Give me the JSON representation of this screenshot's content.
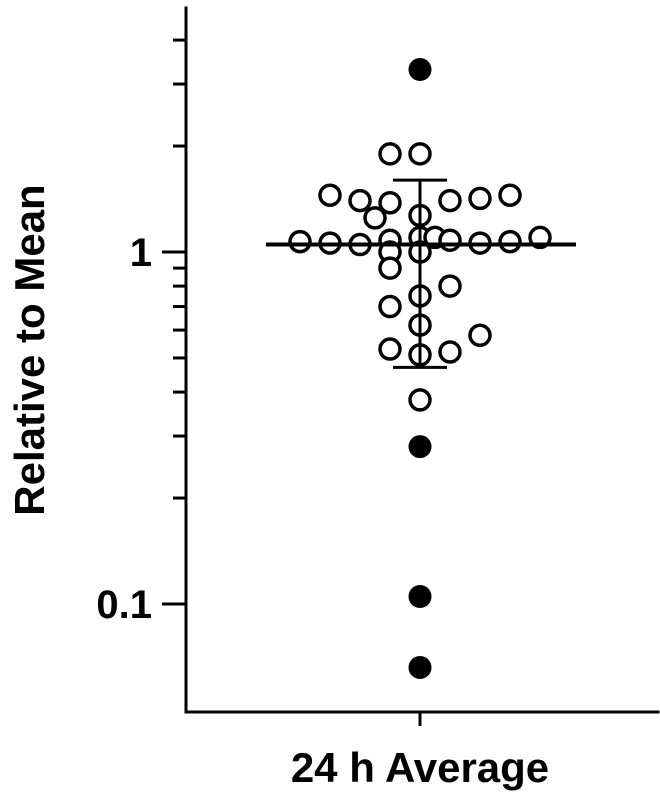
{
  "chart_data": {
    "type": "scatter",
    "title": "",
    "xlabel": "24 h Average",
    "ylabel": "Relative to Mean",
    "yscale": "log",
    "ylim": [
      0.055,
      4.7
    ],
    "grid": false,
    "legend": "none",
    "categories": [
      "24 h Average"
    ],
    "y_tick_labels": [
      {
        "value": 1,
        "label": "1"
      },
      {
        "value": 0.1,
        "label": "0.1"
      }
    ],
    "y_minor_ticks": [
      0.2,
      0.3,
      0.4,
      0.5,
      0.6,
      0.7,
      0.8,
      0.9,
      2,
      3,
      4
    ],
    "series": [
      {
        "marker": "open-circle",
        "points": [
          {
            "x": 0,
            "y": 1.9
          },
          {
            "x": 0,
            "y": 1.9
          },
          {
            "x": 0,
            "y": 1.45
          },
          {
            "x": 0,
            "y": 1.4
          },
          {
            "x": 0,
            "y": 1.38
          },
          {
            "x": 0,
            "y": 1.4
          },
          {
            "x": 0,
            "y": 1.42
          },
          {
            "x": 0,
            "y": 1.45
          },
          {
            "x": 0,
            "y": 1.25
          },
          {
            "x": 0,
            "y": 1.27
          },
          {
            "x": 0,
            "y": 1.07
          },
          {
            "x": 0,
            "y": 1.06
          },
          {
            "x": 0,
            "y": 1.05
          },
          {
            "x": 0,
            "y": 1.08
          },
          {
            "x": 0,
            "y": 1.1
          },
          {
            "x": 0,
            "y": 1.1
          },
          {
            "x": 0,
            "y": 1.08
          },
          {
            "x": 0,
            "y": 1.06
          },
          {
            "x": 0,
            "y": 1.07
          },
          {
            "x": 0,
            "y": 1.1
          },
          {
            "x": 0,
            "y": 1.0
          },
          {
            "x": 0,
            "y": 1.0
          },
          {
            "x": 0,
            "y": 0.9
          },
          {
            "x": 0,
            "y": 0.8
          },
          {
            "x": 0,
            "y": 0.75
          },
          {
            "x": 0,
            "y": 0.7
          },
          {
            "x": 0,
            "y": 0.62
          },
          {
            "x": 0,
            "y": 0.58
          },
          {
            "x": 0,
            "y": 0.53
          },
          {
            "x": 0,
            "y": 0.51
          },
          {
            "x": 0,
            "y": 0.52
          },
          {
            "x": 0,
            "y": 0.38
          }
        ]
      },
      {
        "marker": "filled-circle",
        "points": [
          {
            "x": 0,
            "y": 3.3
          },
          {
            "x": 0,
            "y": 0.28
          },
          {
            "x": 0,
            "y": 0.105
          },
          {
            "x": 0,
            "y": 0.066
          }
        ]
      }
    ],
    "mean": 1.05,
    "error_bar": {
      "upper": 1.6,
      "lower": 0.47
    }
  }
}
